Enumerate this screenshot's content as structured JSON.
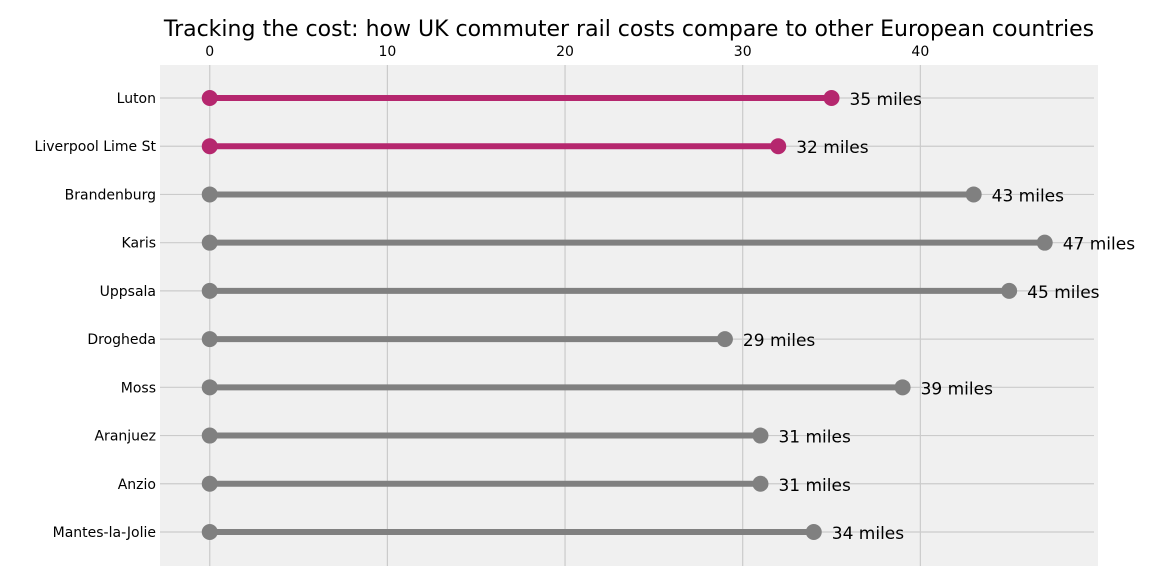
{
  "chart_data": {
    "type": "dumbbell",
    "title": "Tracking the cost: how UK commuter rail costs compare to other European countries",
    "xlabel": "",
    "ylabel": "",
    "xlim": [
      -2.8,
      50
    ],
    "xticks": [
      0,
      10,
      20,
      30,
      40
    ],
    "grid": true,
    "value_unit": "miles",
    "colors": {
      "highlight": "#b5276e",
      "default": "#808080",
      "plot_bg": "#f0f0f0",
      "grid": "#cbcbcb"
    },
    "categories": [
      "Luton",
      "Liverpool Lime St",
      "Brandenburg",
      "Karis",
      "Uppsala",
      "Drogheda",
      "Moss",
      "Aranjuez",
      "Anzio",
      "Mantes-la-Jolie"
    ],
    "start": [
      0,
      0,
      0,
      0,
      0,
      0,
      0,
      0,
      0,
      0
    ],
    "values": [
      35,
      32,
      43,
      47,
      45,
      29,
      39,
      31,
      31,
      34
    ],
    "labels": [
      "35 miles",
      "32 miles",
      "43 miles",
      "47 miles",
      "45 miles",
      "29 miles",
      "39 miles",
      "31 miles",
      "31 miles",
      "34 miles"
    ],
    "highlight": [
      true,
      true,
      false,
      false,
      false,
      false,
      false,
      false,
      false,
      false
    ]
  }
}
